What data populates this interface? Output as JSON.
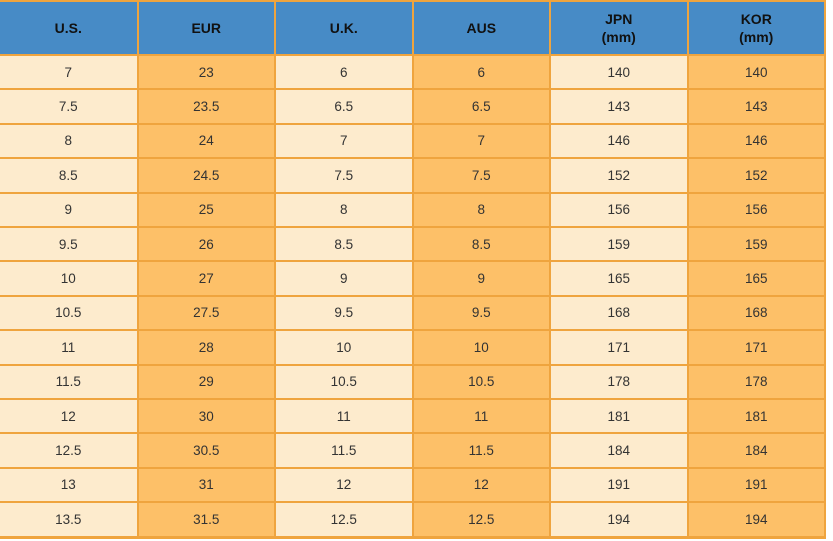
{
  "colors": {
    "header_bg": "#478BC6",
    "cell_light": "#FDEBCD",
    "cell_orange": "#FDC068",
    "border": "#EFA43E",
    "header_text": "#111111",
    "cell_text": "#333333"
  },
  "chart_data": {
    "type": "table",
    "title": "",
    "columns": [
      {
        "key": "us",
        "label": "U.S.",
        "sub": ""
      },
      {
        "key": "eur",
        "label": "EUR",
        "sub": ""
      },
      {
        "key": "uk",
        "label": "U.K.",
        "sub": ""
      },
      {
        "key": "aus",
        "label": "AUS",
        "sub": ""
      },
      {
        "key": "jpn",
        "label": "JPN",
        "sub": "(mm)"
      },
      {
        "key": "kor",
        "label": "KOR",
        "sub": "(mm)"
      }
    ],
    "rows": [
      [
        "7",
        "23",
        "6",
        "6",
        "140",
        "140"
      ],
      [
        "7.5",
        "23.5",
        "6.5",
        "6.5",
        "143",
        "143"
      ],
      [
        "8",
        "24",
        "7",
        "7",
        "146",
        "146"
      ],
      [
        "8.5",
        "24.5",
        "7.5",
        "7.5",
        "152",
        "152"
      ],
      [
        "9",
        "25",
        "8",
        "8",
        "156",
        "156"
      ],
      [
        "9.5",
        "26",
        "8.5",
        "8.5",
        "159",
        "159"
      ],
      [
        "10",
        "27",
        "9",
        "9",
        "165",
        "165"
      ],
      [
        "10.5",
        "27.5",
        "9.5",
        "9.5",
        "168",
        "168"
      ],
      [
        "11",
        "28",
        "10",
        "10",
        "171",
        "171"
      ],
      [
        "11.5",
        "29",
        "10.5",
        "10.5",
        "178",
        "178"
      ],
      [
        "12",
        "30",
        "11",
        "11",
        "181",
        "181"
      ],
      [
        "12.5",
        "30.5",
        "11.5",
        "11.5",
        "184",
        "184"
      ],
      [
        "13",
        "31",
        "12",
        "12",
        "191",
        "191"
      ],
      [
        "13.5",
        "31.5",
        "12.5",
        "12.5",
        "194",
        "194"
      ]
    ]
  }
}
